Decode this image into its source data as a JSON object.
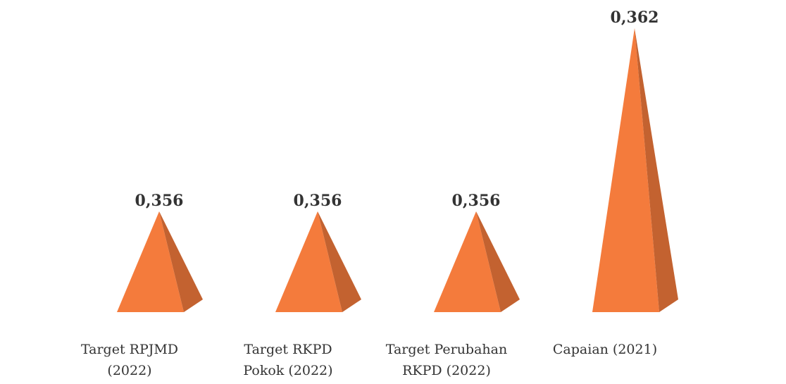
{
  "chart_data": {
    "type": "pyramid",
    "categories": [
      [
        "Target RPJMD",
        "(2022)"
      ],
      [
        "Target RKPD",
        "Pokok (2022)"
      ],
      [
        "Target Perubahan",
        "RKPD (2022)"
      ],
      [
        "Capaian (2021)"
      ]
    ],
    "values": [
      0.356,
      0.356,
      0.356,
      0.362
    ],
    "value_labels": [
      "0,356",
      "0,356",
      "0,356",
      "0,362"
    ],
    "color": "#f47b3c",
    "ylim": [
      0.3527,
      0.3623
    ]
  }
}
